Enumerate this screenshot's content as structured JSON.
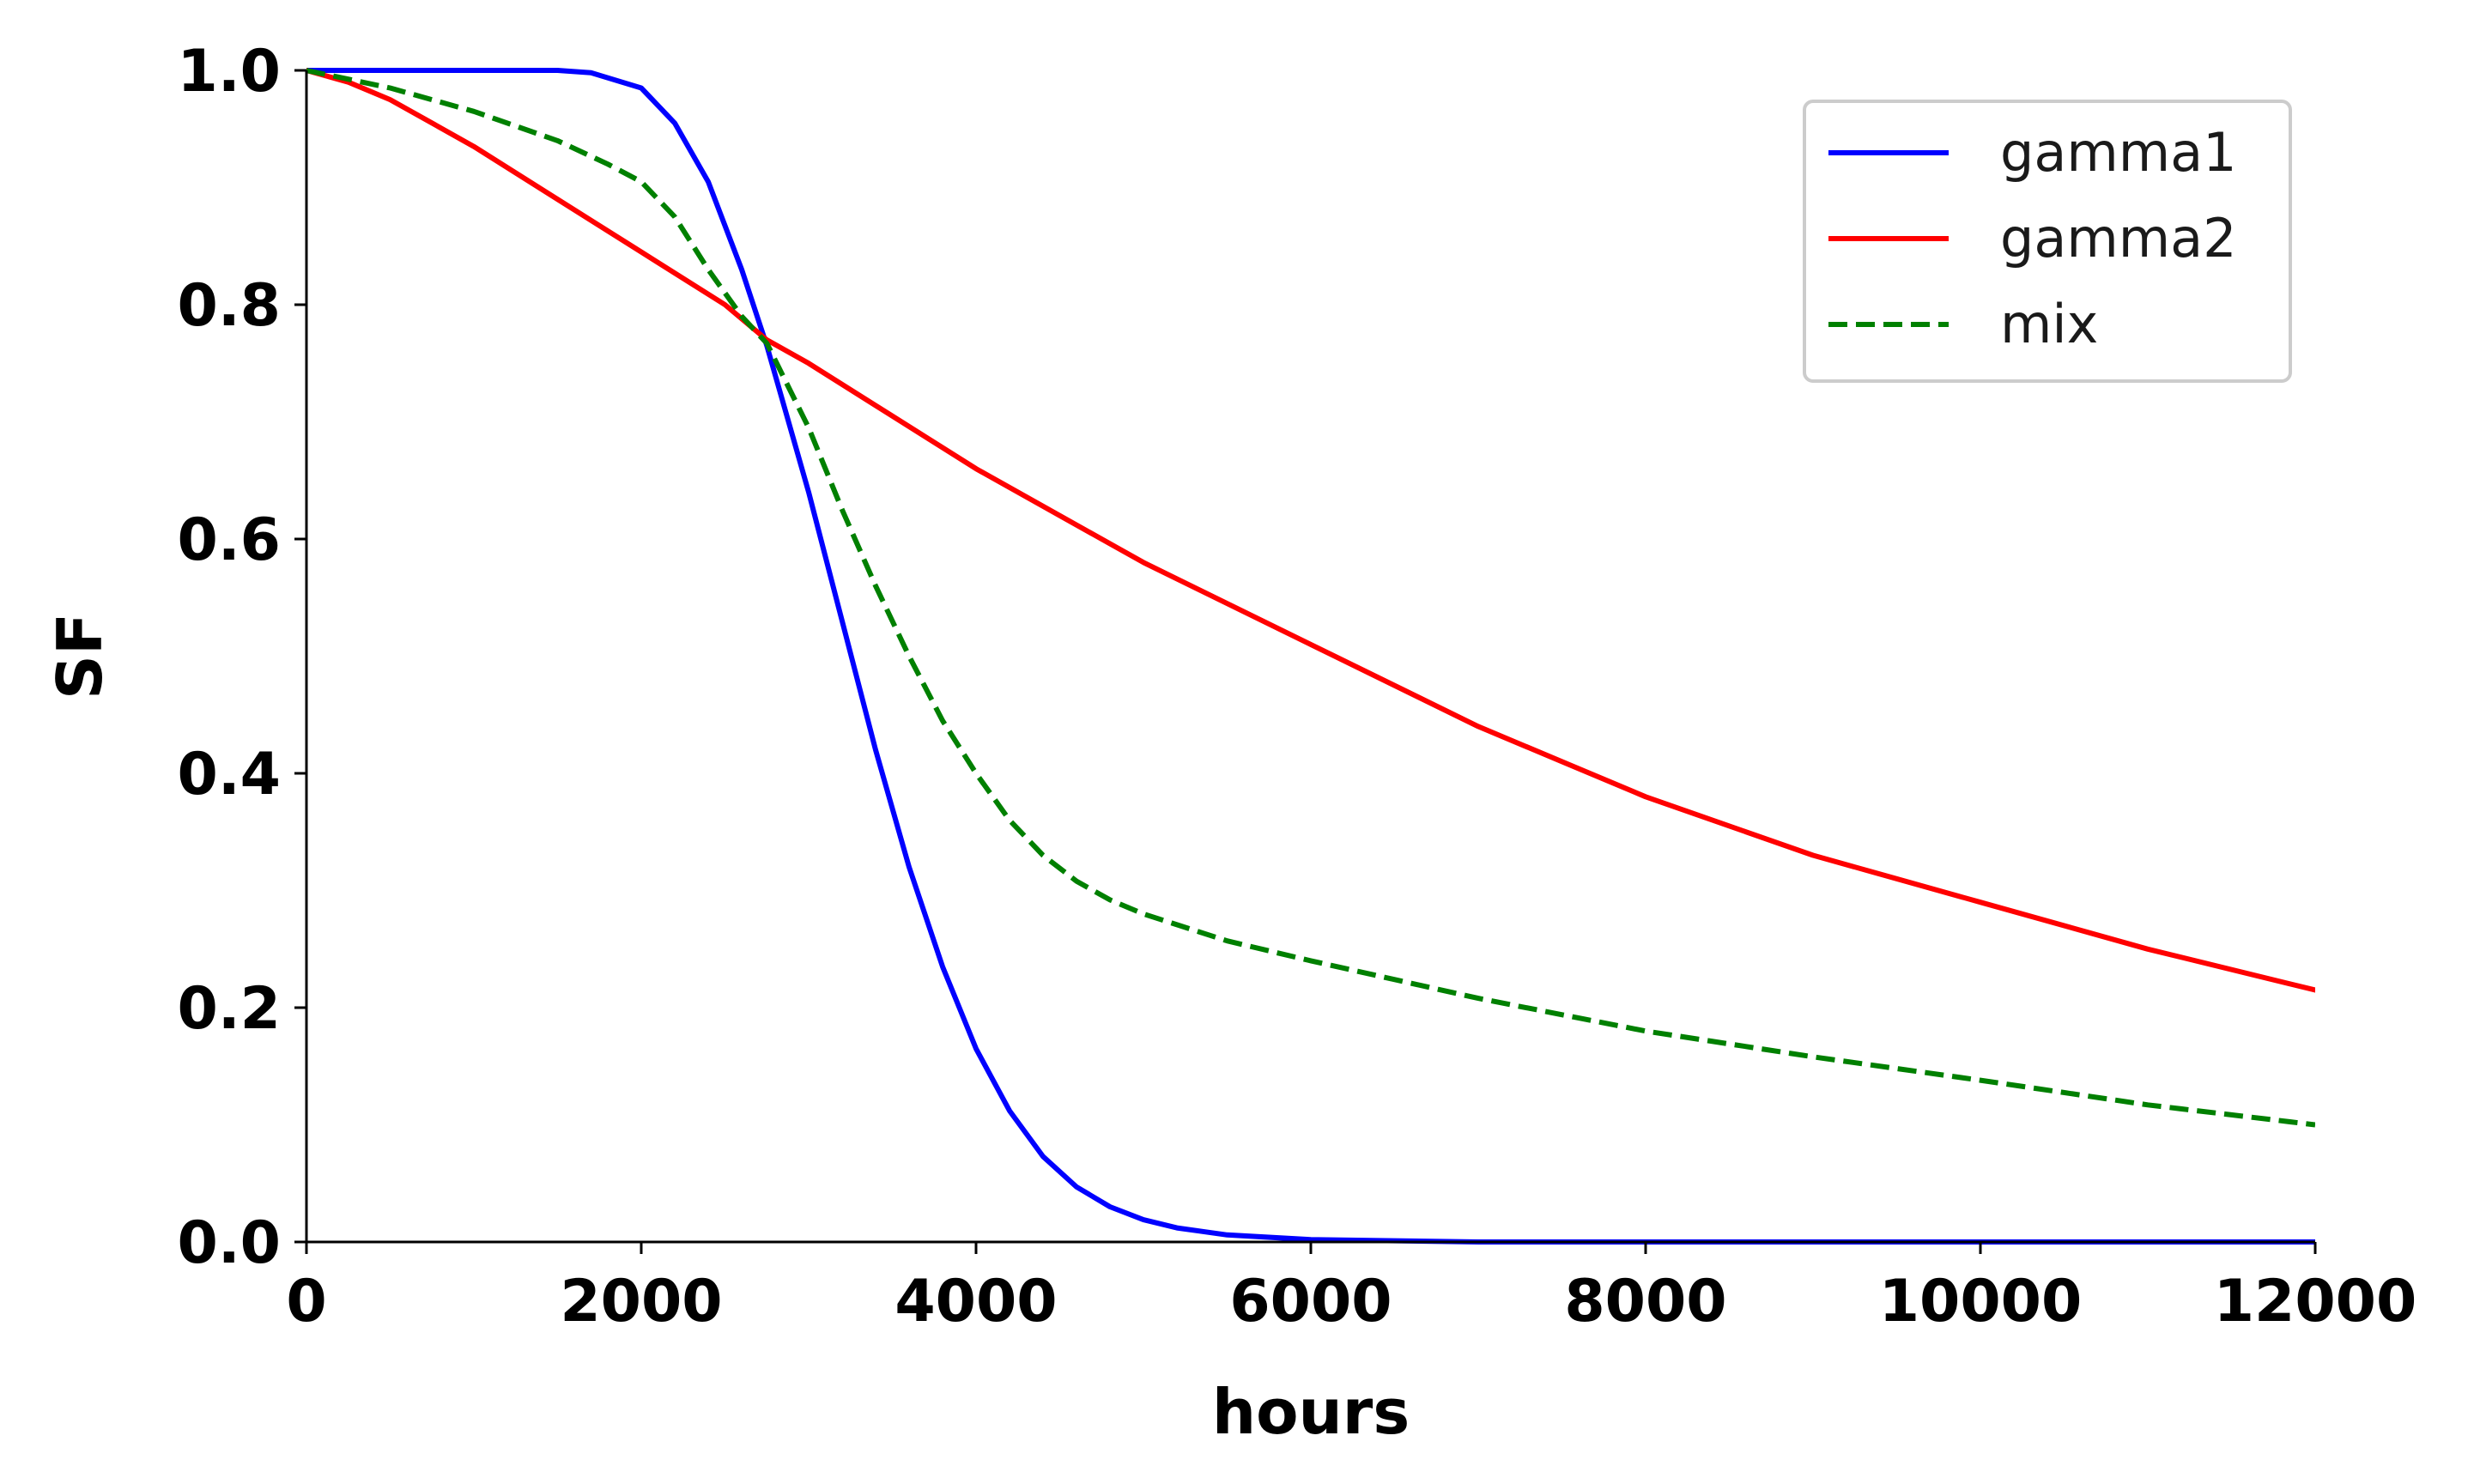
{
  "chart_data": {
    "type": "line",
    "title": "",
    "xlabel": "hours",
    "ylabel": "SF",
    "xlim": [
      0,
      12000
    ],
    "ylim": [
      0,
      1.0
    ],
    "grid": false,
    "legend_position": "top-right",
    "x_ticks": [
      "0",
      "2000",
      "4000",
      "6000",
      "8000",
      "10000",
      "12000"
    ],
    "x_tick_values": [
      0,
      2000,
      4000,
      6000,
      8000,
      10000,
      12000
    ],
    "y_ticks": [
      "0.0",
      "0.2",
      "0.4",
      "0.6",
      "0.8",
      "1.0"
    ],
    "y_tick_values": [
      0.0,
      0.2,
      0.4,
      0.6,
      0.8,
      1.0
    ],
    "series": [
      {
        "name": "gamma1",
        "color": "#0000ff",
        "style": "solid",
        "x": [
          0,
          500,
          1000,
          1500,
          1700,
          2000,
          2200,
          2400,
          2600,
          2750,
          3000,
          3200,
          3400,
          3600,
          3800,
          4000,
          4200,
          4400,
          4600,
          4800,
          5000,
          5200,
          5500,
          6000,
          7000,
          8000,
          10000,
          12000
        ],
        "y": [
          1.0,
          1.0,
          1.0,
          1.0,
          0.998,
          0.985,
          0.955,
          0.905,
          0.83,
          0.765,
          0.64,
          0.53,
          0.42,
          0.32,
          0.235,
          0.165,
          0.112,
          0.073,
          0.047,
          0.03,
          0.019,
          0.012,
          0.006,
          0.002,
          0.0,
          0.0,
          0.0,
          0.0
        ]
      },
      {
        "name": "gamma2",
        "color": "#ff0000",
        "style": "solid",
        "x": [
          0,
          250,
          500,
          1000,
          1500,
          2000,
          2500,
          2750,
          3000,
          3500,
          4000,
          5000,
          6000,
          7000,
          8000,
          9000,
          10000,
          11000,
          12000
        ],
        "y": [
          1.0,
          0.99,
          0.975,
          0.935,
          0.89,
          0.845,
          0.8,
          0.77,
          0.75,
          0.705,
          0.66,
          0.58,
          0.51,
          0.44,
          0.38,
          0.33,
          0.29,
          0.25,
          0.215
        ]
      },
      {
        "name": "mix",
        "color": "#008000",
        "style": "dashed",
        "x": [
          0,
          500,
          1000,
          1500,
          1800,
          2000,
          2200,
          2400,
          2600,
          2750,
          3000,
          3200,
          3400,
          3600,
          3800,
          4000,
          4200,
          4400,
          4600,
          4800,
          5000,
          5500,
          6000,
          7000,
          8000,
          9000,
          10000,
          11000,
          12000
        ],
        "y": [
          1.0,
          0.985,
          0.965,
          0.94,
          0.92,
          0.905,
          0.875,
          0.83,
          0.79,
          0.767,
          0.695,
          0.625,
          0.56,
          0.5,
          0.445,
          0.4,
          0.36,
          0.33,
          0.308,
          0.292,
          0.28,
          0.257,
          0.24,
          0.208,
          0.18,
          0.158,
          0.138,
          0.117,
          0.1
        ]
      }
    ]
  }
}
